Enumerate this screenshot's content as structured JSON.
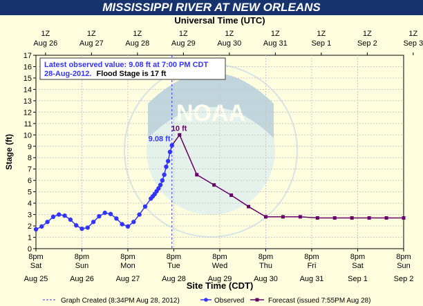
{
  "title": "MISSISSIPPI RIVER AT NEW ORLEANS",
  "top_axis_title": "Universal Time (UTC)",
  "bottom_axis_title": "Site Time (CDT)",
  "info_box": {
    "line1": "Latest observed value: 9.08 ft at 7:00 PM CDT",
    "line2_date": "28-Aug-2012.",
    "line2_flood": "Flood Stage is 17 ft"
  },
  "footer": {
    "created": "Graph Created (8:34PM Aug 28, 2012)",
    "observed": "Observed",
    "forecast": "Forecast (issued 7:55PM Aug 28)"
  },
  "watermark": "NOAA",
  "colors": {
    "observed": "#3333ff",
    "forecast": "#660066",
    "title_bg": "#17336e",
    "background": "#FFFFE0",
    "now_line": "#3333ff"
  },
  "chart_data": {
    "type": "line",
    "ylabel": "Stage (ft)",
    "ylim": [
      0,
      17
    ],
    "yticks": [
      "0",
      "1",
      "2",
      "3",
      "4",
      "5",
      "6",
      "7",
      "8",
      "9",
      "10",
      "11",
      "12",
      "13",
      "14",
      "15",
      "16",
      "17"
    ],
    "grid": true,
    "x_unit": "hours after 8pm Aug 25 CDT",
    "xlim": [
      0,
      192
    ],
    "bottom_ticks": [
      {
        "time": "8pm",
        "day": "Sat",
        "date": "Aug 25"
      },
      {
        "time": "8pm",
        "day": "Sun",
        "date": "Aug 26"
      },
      {
        "time": "8pm",
        "day": "Mon",
        "date": "Aug 27"
      },
      {
        "time": "8pm",
        "day": "Tue",
        "date": "Aug 28"
      },
      {
        "time": "8pm",
        "day": "Wed",
        "date": "Aug 29"
      },
      {
        "time": "8pm",
        "day": "Thu",
        "date": "Aug 30"
      },
      {
        "time": "8pm",
        "day": "Fri",
        "date": "Aug 31"
      },
      {
        "time": "8pm",
        "day": "Sat",
        "date": "Sep 1"
      },
      {
        "time": "8pm",
        "day": "Sun",
        "date": "Sep 2"
      }
    ],
    "top_ticks": [
      {
        "time": "1Z",
        "date": "Aug 26"
      },
      {
        "time": "1Z",
        "date": "Aug 27"
      },
      {
        "time": "1Z",
        "date": "Aug 28"
      },
      {
        "time": "1Z",
        "date": "Aug 29"
      },
      {
        "time": "1Z",
        "date": "Aug 30"
      },
      {
        "time": "1Z",
        "date": "Aug 31"
      },
      {
        "time": "1Z",
        "date": "Sep 1"
      },
      {
        "time": "1Z",
        "date": "Sep 2"
      },
      {
        "time": "1Z",
        "date": "Sep 3"
      }
    ],
    "now_time": 71,
    "observed": {
      "name": "Observed",
      "label": "9.08 ft",
      "x": [
        0,
        3,
        6,
        9,
        12,
        15,
        18,
        21,
        24,
        27,
        30,
        33,
        36,
        39,
        42,
        45,
        48,
        51,
        54,
        57,
        60,
        61,
        62,
        63,
        64,
        65,
        66,
        67,
        68,
        69,
        70,
        71
      ],
      "y": [
        1.7,
        1.95,
        2.35,
        2.8,
        3.0,
        2.9,
        2.55,
        2.05,
        1.75,
        1.85,
        2.35,
        2.85,
        3.15,
        3.05,
        2.65,
        2.15,
        1.95,
        2.35,
        3.0,
        3.7,
        4.4,
        4.6,
        4.8,
        5.05,
        5.3,
        5.6,
        6.0,
        6.5,
        7.2,
        7.7,
        8.5,
        9.08
      ]
    },
    "forecast": {
      "name": "Forecast",
      "label": "10 ft",
      "x": [
        71,
        75,
        84,
        93,
        102,
        111,
        120,
        129,
        138,
        147,
        156,
        165,
        174,
        183,
        192
      ],
      "y": [
        9.08,
        10.0,
        6.5,
        5.6,
        4.7,
        3.7,
        2.8,
        2.8,
        2.8,
        2.7,
        2.7,
        2.7,
        2.7,
        2.7,
        2.7
      ]
    }
  }
}
